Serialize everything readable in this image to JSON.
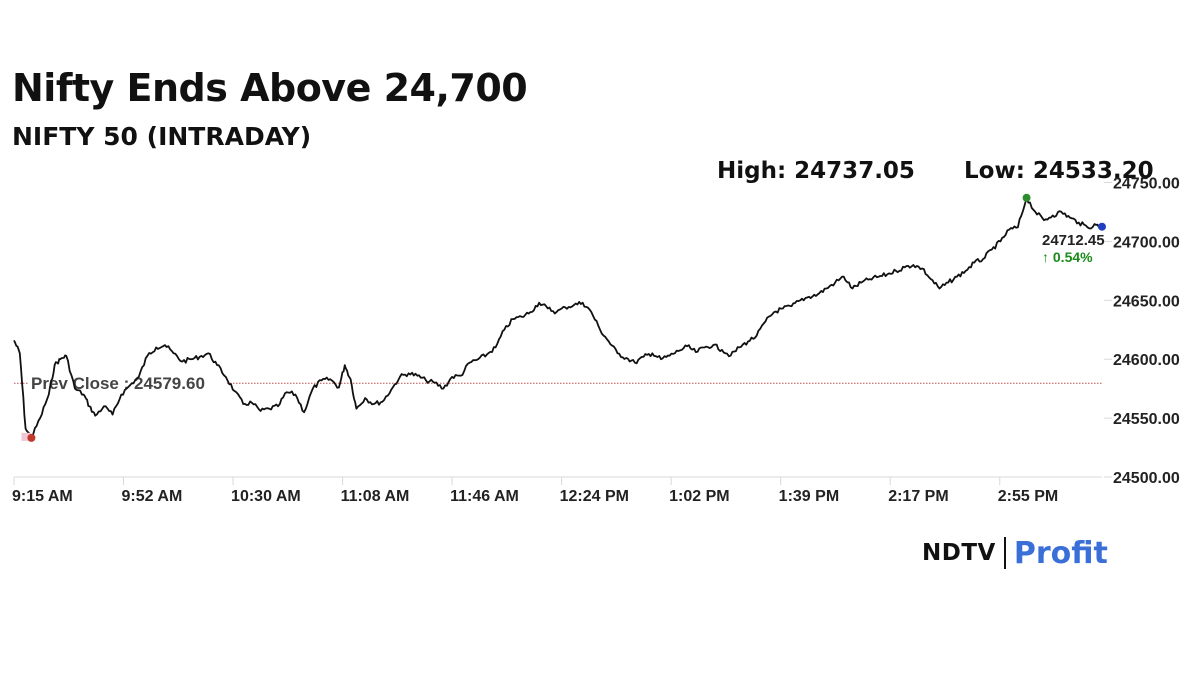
{
  "header": {
    "title": "Nifty Ends Above 24,700",
    "subtitle": "NIFTY 50 (INTRADAY)"
  },
  "stats": {
    "high_text": "High: 24737.05",
    "low_text": "Low: 24533.20"
  },
  "chart_data": {
    "type": "line",
    "ylim": [
      24500,
      24750
    ],
    "yticks": [
      24500,
      24550,
      24600,
      24650,
      24700,
      24750
    ],
    "ytick_labels": [
      "24500.00",
      "24550.00",
      "24600.00",
      "24650.00",
      "24700.00",
      "24750.00"
    ],
    "x_tick_labels": [
      "9:15 AM",
      "9:52 AM",
      "10:30 AM",
      "11:08 AM",
      "11:46 AM",
      "12:24 PM",
      "1:02 PM",
      "1:39 PM",
      "2:17 PM",
      "2:55 PM"
    ],
    "x_start": "9:15 AM",
    "x_end": "3:30 PM",
    "prev_close": 24579.6,
    "prev_close_label": "Prev Close : 24579.60",
    "high": 24737.05,
    "low": 24533.2,
    "close": 24712.45,
    "close_label": "24712.45",
    "change_label": "↑ 0.54%",
    "series": [
      {
        "values": [
          [
            0,
            24616
          ],
          [
            2,
            24605
          ],
          [
            4,
            24541
          ],
          [
            6,
            24533.2
          ],
          [
            9,
            24550
          ],
          [
            12,
            24570
          ],
          [
            14,
            24595
          ],
          [
            16,
            24600
          ],
          [
            18,
            24603
          ],
          [
            21,
            24575
          ],
          [
            24,
            24570
          ],
          [
            26,
            24560
          ],
          [
            28,
            24552
          ],
          [
            31,
            24560
          ],
          [
            34,
            24553
          ],
          [
            37,
            24570
          ],
          [
            40,
            24578
          ],
          [
            43,
            24585
          ],
          [
            46,
            24603
          ],
          [
            49,
            24610
          ],
          [
            52,
            24612
          ],
          [
            55,
            24605
          ],
          [
            58,
            24598
          ],
          [
            61,
            24600
          ],
          [
            64,
            24602
          ],
          [
            67,
            24605
          ],
          [
            70,
            24595
          ],
          [
            73,
            24585
          ],
          [
            76,
            24573
          ],
          [
            79,
            24562
          ],
          [
            82,
            24563
          ],
          [
            85,
            24556
          ],
          [
            88,
            24558
          ],
          [
            91,
            24560
          ],
          [
            94,
            24572
          ],
          [
            97,
            24570
          ],
          [
            100,
            24555
          ],
          [
            103,
            24575
          ],
          [
            106,
            24582
          ],
          [
            109,
            24583
          ],
          [
            112,
            24576
          ],
          [
            114,
            24595
          ],
          [
            116,
            24583
          ],
          [
            118,
            24558
          ],
          [
            121,
            24567
          ],
          [
            124,
            24562
          ],
          [
            127,
            24564
          ],
          [
            130,
            24574
          ],
          [
            133,
            24585
          ],
          [
            136,
            24588
          ],
          [
            139,
            24586
          ],
          [
            142,
            24582
          ],
          [
            145,
            24580
          ],
          [
            148,
            24575
          ],
          [
            151,
            24585
          ],
          [
            154,
            24586
          ],
          [
            157,
            24597
          ],
          [
            160,
            24600
          ],
          [
            163,
            24604
          ],
          [
            166,
            24610
          ],
          [
            169,
            24625
          ],
          [
            172,
            24634
          ],
          [
            175,
            24636
          ],
          [
            178,
            24640
          ],
          [
            181,
            24648
          ],
          [
            184,
            24643
          ],
          [
            187,
            24640
          ],
          [
            190,
            24644
          ],
          [
            193,
            24646
          ],
          [
            196,
            24648
          ],
          [
            199,
            24640
          ],
          [
            202,
            24625
          ],
          [
            205,
            24615
          ],
          [
            208,
            24605
          ],
          [
            211,
            24601
          ],
          [
            214,
            24597
          ],
          [
            217,
            24602
          ],
          [
            220,
            24605
          ],
          [
            223,
            24600
          ],
          [
            226,
            24603
          ],
          [
            229,
            24607
          ],
          [
            232,
            24611
          ],
          [
            235,
            24606
          ],
          [
            238,
            24610
          ],
          [
            241,
            24612
          ],
          [
            244,
            24608
          ],
          [
            247,
            24603
          ],
          [
            250,
            24610
          ],
          [
            253,
            24615
          ],
          [
            256,
            24620
          ],
          [
            259,
            24632
          ],
          [
            262,
            24640
          ],
          [
            265,
            24643
          ],
          [
            268,
            24645
          ],
          [
            271,
            24650
          ],
          [
            274,
            24653
          ],
          [
            277,
            24655
          ],
          [
            280,
            24660
          ],
          [
            283,
            24665
          ],
          [
            286,
            24670
          ],
          [
            289,
            24660
          ],
          [
            292,
            24665
          ],
          [
            295,
            24668
          ],
          [
            298,
            24670
          ],
          [
            301,
            24672
          ],
          [
            304,
            24675
          ],
          [
            307,
            24678
          ],
          [
            310,
            24680
          ],
          [
            313,
            24677
          ],
          [
            316,
            24668
          ],
          [
            319,
            24660
          ],
          [
            322,
            24665
          ],
          [
            325,
            24670
          ],
          [
            328,
            24675
          ],
          [
            331,
            24682
          ],
          [
            334,
            24685
          ],
          [
            337,
            24693
          ],
          [
            340,
            24700
          ],
          [
            343,
            24710
          ],
          [
            346,
            24712
          ],
          [
            349,
            24737.05
          ],
          [
            352,
            24725
          ],
          [
            355,
            24718
          ],
          [
            358,
            24722
          ],
          [
            361,
            24725
          ],
          [
            364,
            24720
          ],
          [
            367,
            24716
          ],
          [
            370,
            24712
          ],
          [
            373,
            24714
          ],
          [
            375,
            24712.45
          ]
        ]
      }
    ]
  },
  "logo": {
    "ndtv": "NDTV",
    "profit": "Profit"
  },
  "colors": {
    "line": "#111111",
    "prev_close_line": "#c0504d",
    "high_dot": "#2e8b2e",
    "low_dot": "#c0392b",
    "close_dot": "#1f3fbf",
    "change_up": "#1a8a1a",
    "logo_accent": "#3a6fd8"
  }
}
